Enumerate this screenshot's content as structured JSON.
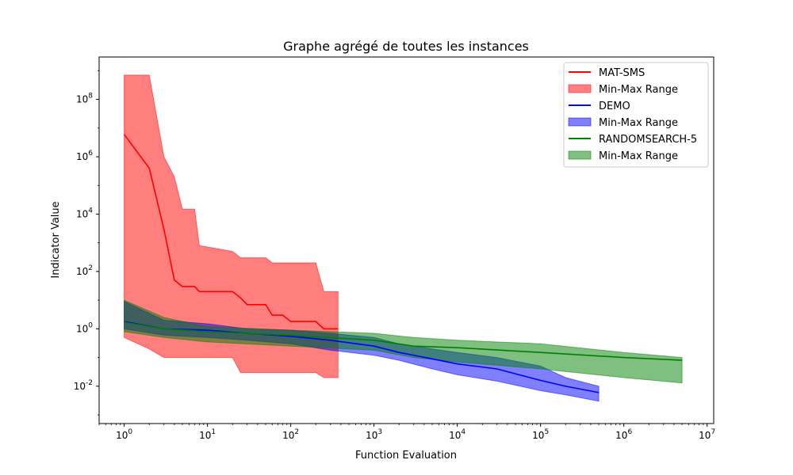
{
  "chart_data": {
    "type": "line",
    "title": "Graphe agrégé de toutes les instances",
    "xlabel": "Function Evaluation",
    "ylabel": "Indicator Value",
    "xscale": "log",
    "yscale": "log",
    "xlim": [
      0.5,
      12000000
    ],
    "ylim": [
      0.0005,
      3000000000
    ],
    "x_ticks": [
      1,
      10,
      100,
      1000,
      10000,
      100000,
      1000000,
      10000000
    ],
    "y_ticks": [
      0.01,
      1,
      100,
      10000,
      1000000,
      100000000
    ],
    "legend_position": "top-right",
    "series": [
      {
        "name": "MAT-SMS",
        "color": "#ff0000",
        "band_label": "Min-Max Range",
        "x": [
          1,
          2,
          3,
          4,
          5,
          7,
          8,
          20,
          25,
          30,
          50,
          60,
          80,
          100,
          200,
          250,
          370
        ],
        "y": [
          6000000,
          400000,
          3000,
          50,
          30,
          30,
          20,
          20,
          12,
          7,
          7,
          3,
          3,
          1.8,
          1.8,
          1,
          1
        ],
        "min": [
          0.5,
          0.2,
          0.1,
          0.1,
          0.1,
          0.1,
          0.1,
          0.1,
          0.03,
          0.03,
          0.03,
          0.03,
          0.03,
          0.03,
          0.03,
          0.02,
          0.02
        ],
        "max": [
          700000000,
          700000000,
          1000000,
          200000,
          15000,
          15000,
          800,
          500,
          300,
          300,
          300,
          200,
          200,
          200,
          200,
          20,
          20
        ]
      },
      {
        "name": "DEMO",
        "color": "#0000ff",
        "band_label": "Min-Max Range",
        "x": [
          1,
          3,
          10,
          30,
          100,
          300,
          1000,
          2000,
          5000,
          10000,
          30000,
          100000,
          200000,
          500000
        ],
        "y": [
          1.8,
          1,
          0.9,
          0.7,
          0.55,
          0.4,
          0.25,
          0.15,
          0.09,
          0.06,
          0.04,
          0.016,
          0.01,
          0.006
        ],
        "min": [
          1,
          0.6,
          0.5,
          0.4,
          0.3,
          0.18,
          0.12,
          0.08,
          0.04,
          0.025,
          0.015,
          0.007,
          0.005,
          0.003
        ],
        "max": [
          9,
          2,
          1.5,
          1,
          0.9,
          0.7,
          0.5,
          0.3,
          0.2,
          0.15,
          0.1,
          0.05,
          0.02,
          0.01
        ]
      },
      {
        "name": "RANDOMSEARCH-5",
        "color": "#008000",
        "band_label": "Min-Max Range",
        "x": [
          1,
          3,
          10,
          100,
          1000,
          3000,
          10000,
          100000,
          1000000,
          5000000
        ],
        "y": [
          1.7,
          1,
          0.8,
          0.6,
          0.4,
          0.25,
          0.22,
          0.15,
          0.1,
          0.08
        ],
        "min": [
          0.8,
          0.5,
          0.35,
          0.25,
          0.18,
          0.1,
          0.07,
          0.04,
          0.02,
          0.013
        ],
        "max": [
          10,
          2.5,
          1.2,
          0.9,
          0.7,
          0.5,
          0.4,
          0.3,
          0.15,
          0.1
        ]
      }
    ]
  }
}
